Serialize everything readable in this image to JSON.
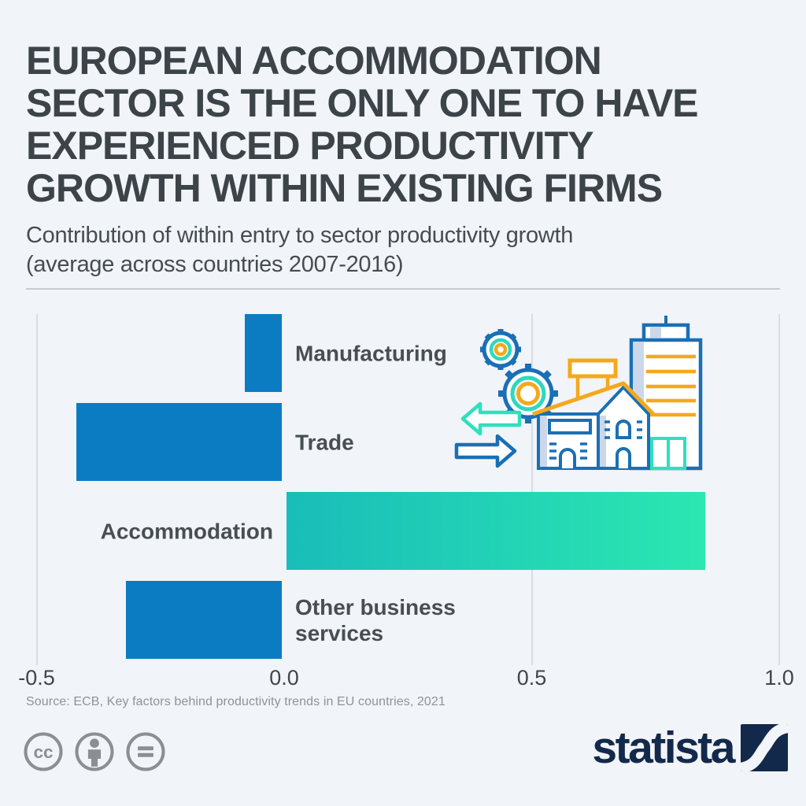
{
  "page": {
    "background": "#f1f4f8"
  },
  "header": {
    "title_lines": [
      "EUROPEAN ACCOMMODATION",
      "SECTOR IS THE ONLY ONE TO HAVE",
      "EXPERIENCED PRODUCTIVITY",
      "GROWTH WITHIN EXISTING FIRMS"
    ],
    "subtitle_lines": [
      "Contribution of within entry to sector productivity growth",
      "(average across countries 2007-2016)"
    ]
  },
  "chart_data": {
    "type": "bar",
    "orientation": "horizontal",
    "categories": [
      "Manufacturing",
      "Trade",
      "Accommodation",
      "Other business services"
    ],
    "values": [
      -0.08,
      -0.42,
      0.85,
      -0.32
    ],
    "bar_colors": [
      "#0b7cc2",
      "#0b7cc2",
      [
        "#19bdb9",
        "#2be7b1"
      ],
      "#0b7cc2"
    ],
    "xlim": [
      -0.5,
      1.0
    ],
    "xticks": [
      -0.5,
      0,
      0.5,
      1
    ],
    "xtick_labels": [
      "-0.5",
      "0.0",
      "0.5",
      "1.0"
    ],
    "grid": true,
    "legend": "none",
    "xlabel": "",
    "ylabel": "",
    "label_color": "#474e54",
    "tick_color": "#3f4549",
    "gridline_color": "#d9dde3",
    "bar_blue": "#0b7cc2",
    "teal_gradient": [
      "#19bdb9",
      "#2be7b1"
    ]
  },
  "source": {
    "text": "Source: ECB, Key factors behind productivity trends in EU countries, 2021"
  },
  "footer": {
    "cc_text": "cc",
    "icons": [
      "creative-commons",
      "attribution",
      "no-derivatives"
    ],
    "icon_gray": "#8a8f93",
    "wordmark": "statista",
    "brand_navy": "#13294b"
  },
  "illustration": {
    "blue": "#1a6fb5",
    "teal": "#2fe0bd",
    "orange": "#f5a81c",
    "shade": "#ccd7ea"
  }
}
